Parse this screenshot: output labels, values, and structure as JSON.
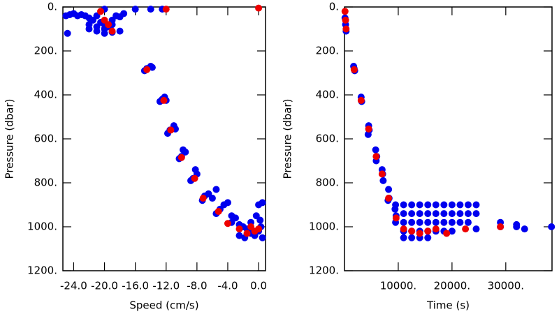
{
  "chart_data": [
    {
      "type": "scatter",
      "x_label": "Speed (cm/s)",
      "y_label": "Pressure (dbar)",
      "xlim": [
        -25.4,
        0.9
      ],
      "ylim": [
        1200,
        0
      ],
      "xticks": [
        {
          "value": -24,
          "label": "-24.0"
        },
        {
          "value": -20,
          "label": "-20.0"
        },
        {
          "value": -16,
          "label": "-16.0"
        },
        {
          "value": -12,
          "label": "-12.0"
        },
        {
          "value": -8,
          "label": "-8.0"
        },
        {
          "value": -4,
          "label": "-4.0"
        },
        {
          "value": 0,
          "label": "0.0"
        }
      ],
      "yticks": [
        {
          "value": 0,
          "label": "0."
        },
        {
          "value": 200,
          "label": "200."
        },
        {
          "value": 400,
          "label": "400."
        },
        {
          "value": 600,
          "label": "600."
        },
        {
          "value": 800,
          "label": "800."
        },
        {
          "value": 1000,
          "label": "1000."
        },
        {
          "value": 1200,
          "label": "1200."
        }
      ],
      "series": [
        {
          "color": "#0000ee",
          "x": [
            -25,
            -24.5,
            -24,
            -23.5,
            -23,
            -22.5,
            -22,
            -21.5,
            -21,
            -20.5,
            -20,
            -19.5,
            -19,
            -18.5,
            -18,
            -17.5,
            -22,
            -21,
            -20,
            -19,
            -22,
            -21,
            -20,
            -19,
            -18,
            -24.8,
            -20,
            -16,
            -14,
            -12.5,
            -14.5,
            -14,
            -14.8,
            -13.8,
            -12.5,
            -12.2,
            -12.8,
            -12,
            -11.5,
            -11,
            -11.8,
            -10.8,
            -10,
            -9.5,
            -10.3,
            -9.8,
            -8.5,
            -8,
            -8.8,
            -8.2,
            -7,
            -6.5,
            -6,
            -7.3,
            -5.5,
            -5,
            -4.5,
            -5.5,
            -4,
            -3.5,
            -3.5,
            -3,
            -2.5,
            -2,
            -1.5,
            -1,
            -0.5,
            0,
            0.3,
            -0.3,
            0,
            0.5,
            0.2,
            -1,
            -2.5,
            -1.8,
            0.5
          ],
          "y": [
            40,
            35,
            30,
            40,
            35,
            40,
            50,
            60,
            40,
            70,
            80,
            90,
            60,
            40,
            45,
            30,
            100,
            110,
            120,
            115,
            80,
            90,
            100,
            80,
            110,
            120,
            10,
            10,
            10,
            10,
            280,
            270,
            290,
            275,
            420,
            410,
            430,
            425,
            560,
            540,
            575,
            555,
            680,
            660,
            690,
            650,
            780,
            760,
            790,
            740,
            860,
            850,
            870,
            880,
            830,
            920,
            900,
            940,
            890,
            950,
            980,
            960,
            990,
            1000,
            1010,
            1030,
            1040,
            1020,
            1000,
            950,
            900,
            890,
            970,
            980,
            1040,
            1050,
            1050
          ]
        },
        {
          "color": "#ee0000",
          "x": [
            -20,
            -19.5,
            -19,
            -20.5,
            -12,
            0,
            -14.5,
            -12.3,
            -11.4,
            -10,
            -8.3,
            -7.2,
            -5.2,
            -4,
            -2.5,
            -1.5,
            -0.5,
            0,
            -1
          ],
          "y": [
            60,
            80,
            110,
            20,
            10,
            5,
            285,
            425,
            560,
            685,
            780,
            870,
            930,
            985,
            1010,
            1030,
            1020,
            1010,
            1000
          ]
        }
      ]
    },
    {
      "type": "scatter",
      "x_label": "Time (s)",
      "y_label": "Pressure (dbar)",
      "xlim": [
        0,
        38600
      ],
      "ylim": [
        1200,
        0
      ],
      "xticks": [
        {
          "value": 10000,
          "label": "10000."
        },
        {
          "value": 20000,
          "label": "20000."
        },
        {
          "value": 30000,
          "label": "30000."
        }
      ],
      "yticks": [
        {
          "value": 0,
          "label": "0."
        },
        {
          "value": 200,
          "label": "200."
        },
        {
          "value": 400,
          "label": "400."
        },
        {
          "value": 600,
          "label": "600."
        },
        {
          "value": 800,
          "label": "800."
        },
        {
          "value": 1000,
          "label": "1000."
        },
        {
          "value": 1200,
          "label": "1200."
        }
      ],
      "series": [
        {
          "color": "#0000ee",
          "x": [
            100,
            200,
            300,
            1800,
            1700,
            1900,
            3100,
            3200,
            4500,
            4600,
            4400,
            5800,
            6000,
            5900,
            7000,
            7100,
            7200,
            8200,
            8300,
            8100,
            9500,
            9400,
            9600,
            9500,
            11000,
            11000,
            11000,
            11000,
            11000,
            12500,
            12500,
            12500,
            12500,
            12500,
            14000,
            14000,
            14000,
            14000,
            14000,
            15500,
            15500,
            15500,
            15500,
            15500,
            17000,
            17000,
            17000,
            17000,
            18500,
            18500,
            18500,
            18500,
            20000,
            20000,
            20000,
            20000,
            21500,
            21500,
            21500,
            23000,
            23000,
            23000,
            24500,
            24500,
            24500,
            29000,
            29000,
            32000,
            32000,
            33500,
            38500
          ],
          "y": [
            50,
            80,
            110,
            280,
            270,
            290,
            410,
            430,
            540,
            560,
            580,
            650,
            680,
            700,
            740,
            760,
            790,
            830,
            870,
            880,
            900,
            920,
            950,
            980,
            900,
            940,
            980,
            1020,
            1050,
            900,
            940,
            980,
            1020,
            1050,
            900,
            940,
            980,
            1020,
            1050,
            900,
            940,
            980,
            1020,
            1050,
            900,
            940,
            980,
            1020,
            900,
            940,
            980,
            1020,
            900,
            940,
            980,
            1020,
            900,
            940,
            980,
            900,
            940,
            980,
            900,
            940,
            1010,
            980,
            1000,
            990,
            1000,
            1010,
            1000
          ]
        },
        {
          "color": "#ee0000",
          "x": [
            100,
            200,
            300,
            1800,
            3100,
            4500,
            5900,
            7000,
            8200,
            9600,
            11000,
            12500,
            14000,
            15500,
            17000,
            19000,
            22500,
            29000
          ],
          "y": [
            20,
            60,
            100,
            285,
            425,
            555,
            680,
            760,
            870,
            960,
            1010,
            1020,
            1030,
            1020,
            1010,
            1030,
            1010,
            1000
          ]
        }
      ]
    }
  ]
}
